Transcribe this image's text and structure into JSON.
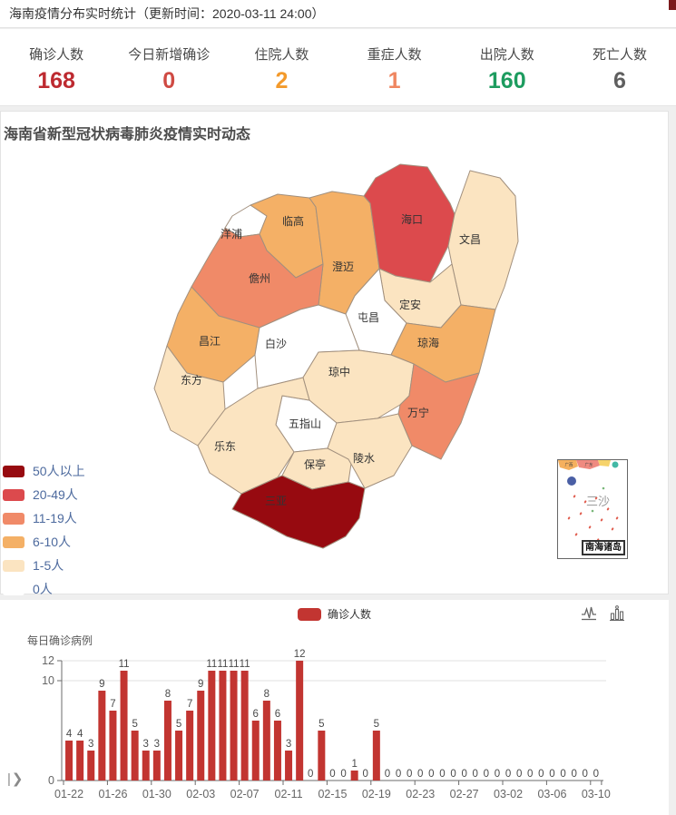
{
  "header": {
    "title": "海南疫情分布实时统计（更新时间：2020-03-11 24:00）"
  },
  "stats": [
    {
      "label": "确诊人数",
      "value": "168",
      "color": "#bd2a30"
    },
    {
      "label": "今日新增确诊",
      "value": "0",
      "color": "#cf4a43"
    },
    {
      "label": "住院人数",
      "value": "2",
      "color": "#f39a2b"
    },
    {
      "label": "重症人数",
      "value": "1",
      "color": "#ef8660"
    },
    {
      "label": "出院人数",
      "value": "160",
      "color": "#1d9c5f"
    },
    {
      "label": "死亡人数",
      "value": "6",
      "color": "#5f5f5f"
    }
  ],
  "map": {
    "title": "海南省新型冠状病毒肺炎疫情实时动态",
    "legend": [
      {
        "label": "50人以上",
        "color": "#970a10"
      },
      {
        "label": "20-49人",
        "color": "#dc4a4d"
      },
      {
        "label": "11-19人",
        "color": "#f08a68"
      },
      {
        "label": "6-10人",
        "color": "#f4b066"
      },
      {
        "label": "1-5人",
        "color": "#fbe4c1"
      },
      {
        "label": "0人",
        "color": "#ffffff"
      }
    ],
    "regions": [
      {
        "id": "yangpu",
        "name": "洋浦",
        "bucket": "0人"
      },
      {
        "id": "lingao",
        "name": "临高",
        "bucket": "6-10人"
      },
      {
        "id": "chengmai",
        "name": "澄迈",
        "bucket": "6-10人"
      },
      {
        "id": "haikou",
        "name": "海口",
        "bucket": "20-49人"
      },
      {
        "id": "wenchang",
        "name": "文昌",
        "bucket": "1-5人"
      },
      {
        "id": "danzhou",
        "name": "儋州",
        "bucket": "11-19人"
      },
      {
        "id": "dingan",
        "name": "定安",
        "bucket": "1-5人"
      },
      {
        "id": "tunchang",
        "name": "屯昌",
        "bucket": "0人"
      },
      {
        "id": "qionghai",
        "name": "琼海",
        "bucket": "6-10人"
      },
      {
        "id": "changjiang",
        "name": "昌江",
        "bucket": "6-10人"
      },
      {
        "id": "baisha",
        "name": "白沙",
        "bucket": "0人"
      },
      {
        "id": "dongfang",
        "name": "东方",
        "bucket": "1-5人"
      },
      {
        "id": "qiongzhong",
        "name": "琼中",
        "bucket": "1-5人"
      },
      {
        "id": "wanning",
        "name": "万宁",
        "bucket": "11-19人"
      },
      {
        "id": "wuzhishan",
        "name": "五指山",
        "bucket": "0人"
      },
      {
        "id": "ledong",
        "name": "乐东",
        "bucket": "1-5人"
      },
      {
        "id": "baoting",
        "name": "保亭",
        "bucket": "1-5人"
      },
      {
        "id": "lingshui",
        "name": "陵水",
        "bucket": "1-5人"
      },
      {
        "id": "sanya",
        "name": "三亚",
        "bucket": "50人以上"
      }
    ],
    "inset": {
      "label": "三沙",
      "caption": "南海诸岛",
      "mini_labels": [
        "广西",
        "广东"
      ]
    }
  },
  "chart_data": {
    "type": "bar",
    "title": "每日确诊病例",
    "legend": [
      "确诊人数"
    ],
    "legend_position": "top-center",
    "bar_color": "#c23531",
    "ylim": [
      0,
      12
    ],
    "y_ticks": [
      0,
      10,
      12
    ],
    "x_label_interval": 4,
    "categories": [
      "01-22",
      "01-23",
      "01-24",
      "01-25",
      "01-26",
      "01-27",
      "01-28",
      "01-29",
      "01-30",
      "01-31",
      "02-01",
      "02-02",
      "02-03",
      "02-04",
      "02-05",
      "02-06",
      "02-07",
      "02-08",
      "02-09",
      "02-10",
      "02-11",
      "02-12",
      "02-13",
      "02-14",
      "02-15",
      "02-16",
      "02-17",
      "02-18",
      "02-19",
      "02-20",
      "02-21",
      "02-22",
      "02-23",
      "02-24",
      "02-25",
      "02-26",
      "02-27",
      "02-28",
      "02-29",
      "03-01",
      "03-02",
      "03-03",
      "03-04",
      "03-05",
      "03-06",
      "03-07",
      "03-08",
      "03-09",
      "03-10"
    ],
    "series": [
      {
        "name": "确诊人数",
        "values": [
          4,
          4,
          3,
          9,
          7,
          11,
          5,
          3,
          3,
          8,
          5,
          7,
          9,
          11,
          11,
          11,
          11,
          6,
          8,
          6,
          3,
          12,
          0,
          5,
          0,
          0,
          1,
          0,
          5,
          0,
          0,
          0,
          0,
          0,
          0,
          0,
          0,
          0,
          0,
          0,
          0,
          0,
          0,
          0,
          0,
          0,
          0,
          0,
          0
        ]
      }
    ]
  },
  "icons": {
    "toolbox": [
      "line-chart-icon",
      "bar-chart-icon"
    ],
    "corner": "datazoom-expand-icon"
  }
}
